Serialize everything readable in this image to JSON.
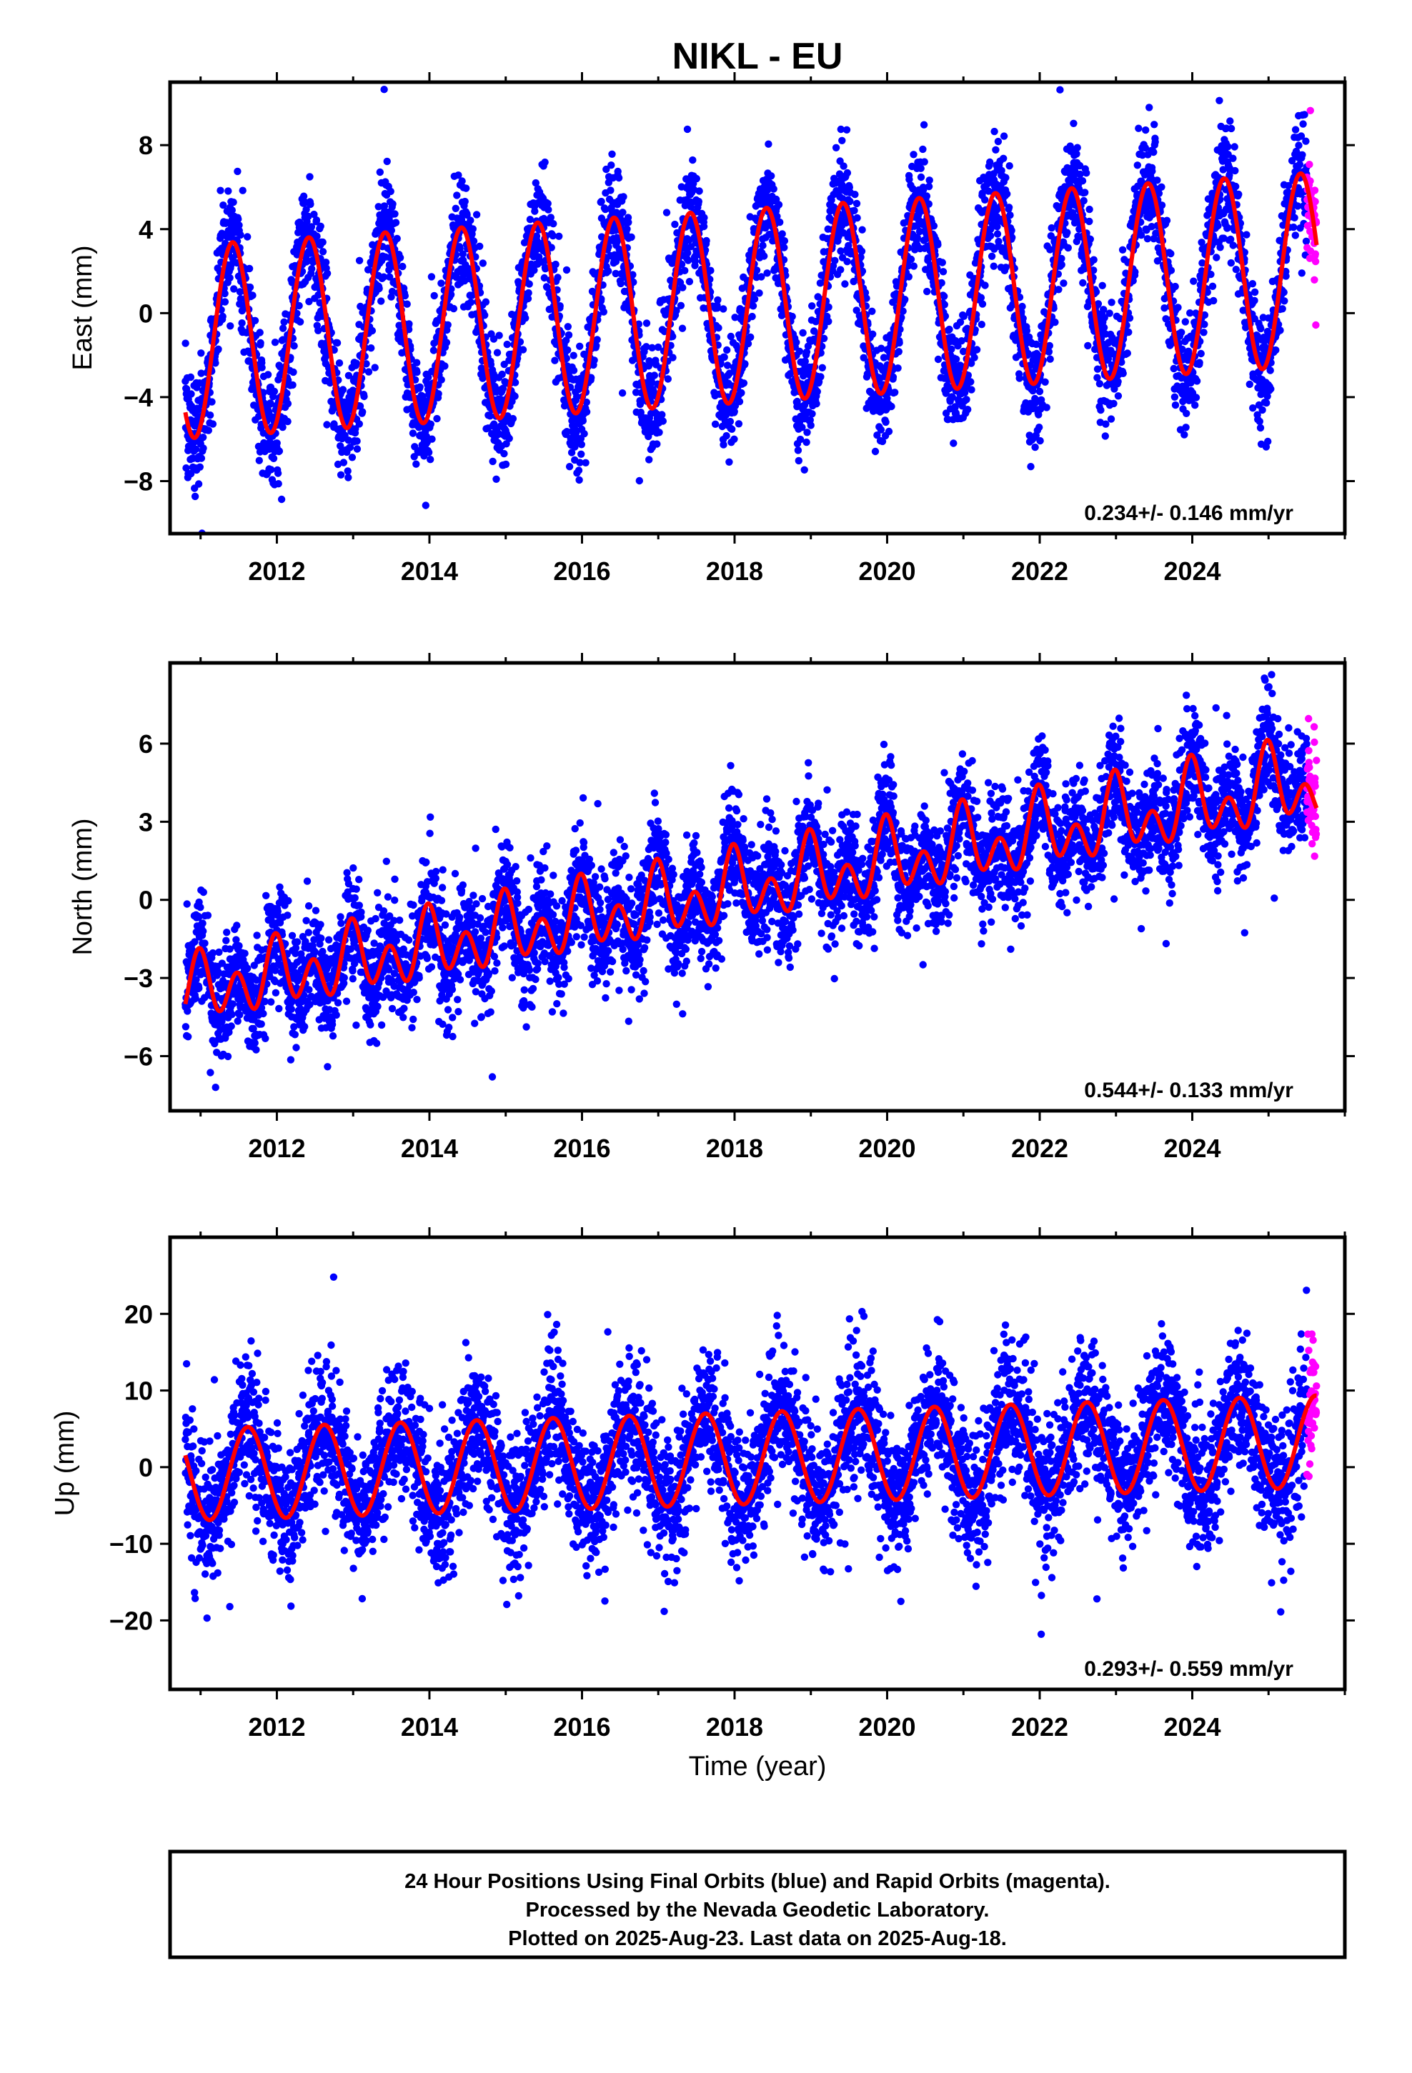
{
  "title": "NIKL - EU",
  "xlabel": "Time (year)",
  "footer": {
    "line1": "24 Hour Positions Using Final Orbits (blue) and Rapid Orbits (magenta).",
    "line2": "Processed by the Nevada Geodetic Laboratory.",
    "line3": "Plotted on 2025-Aug-23. Last data on 2025-Aug-18."
  },
  "colors": {
    "final_orbits": "#0000ff",
    "rapid_orbits": "#ff00ff",
    "model_fit": "#ff0000",
    "frame": "#000000"
  },
  "chart_data": [
    {
      "type": "scatter",
      "panel": "east",
      "ylabel": "East (mm)",
      "rate_label": "0.234+/- 0.146 mm/yr",
      "xlim": [
        2010.6,
        2026.0
      ],
      "ylim": [
        -10.5,
        11.0
      ],
      "xticks": [
        2012,
        2014,
        2016,
        2018,
        2020,
        2022,
        2024
      ],
      "yticks": [
        -8,
        -4,
        0,
        4,
        8
      ],
      "data_start": 2010.8,
      "data_end": 2025.63,
      "rapid_start": 2025.5,
      "model": {
        "offset": -1.37,
        "rate_mm_per_yr": 0.234,
        "annual_amplitude_start": 4.6,
        "annual_amplitude_end": 4.6,
        "annual_peak_phase_year": 0.42,
        "semiannual_amplitude": 0.0,
        "semiannual_peak_phase_year": 0.0
      },
      "scatter_sd_mm": 1.35
    },
    {
      "type": "scatter",
      "panel": "north",
      "ylabel": "North (mm)",
      "rate_label": "0.544+/- 0.133 mm/yr",
      "xlim": [
        2010.6,
        2026.0
      ],
      "ylim": [
        -8.1,
        9.1
      ],
      "xticks": [
        2012,
        2014,
        2016,
        2018,
        2020,
        2022,
        2024
      ],
      "yticks": [
        -6,
        -3,
        0,
        3,
        6
      ],
      "data_start": 2010.8,
      "data_end": 2025.63,
      "rapid_start": 2025.5,
      "model": {
        "offset": -3.55,
        "rate_mm_per_yr": 0.544,
        "annual_amplitude_start": 0.6,
        "annual_amplitude_end": 1.0,
        "annual_peak_phase_year": 0.0,
        "semiannual_amplitude": 1.0,
        "semiannual_peak_phase_year": 0.98
      },
      "scatter_sd_mm": 1.05
    },
    {
      "type": "scatter",
      "panel": "up",
      "ylabel": "Up (mm)",
      "rate_label": "0.293+/- 0.559 mm/yr",
      "xlim": [
        2010.6,
        2026.0
      ],
      "ylim": [
        -29.0,
        30.0
      ],
      "xticks": [
        2012,
        2014,
        2016,
        2018,
        2020,
        2022,
        2024
      ],
      "yticks": [
        -20,
        -10,
        0,
        10,
        20
      ],
      "data_start": 2010.8,
      "data_end": 2025.63,
      "rapid_start": 2025.5,
      "model": {
        "offset": -1.0,
        "rate_mm_per_yr": 0.293,
        "annual_amplitude_start": 6.0,
        "annual_amplitude_end": 6.0,
        "annual_peak_phase_year": 0.62,
        "semiannual_amplitude": 0.0,
        "semiannual_peak_phase_year": 0.0
      },
      "scatter_sd_mm": 4.3
    }
  ]
}
